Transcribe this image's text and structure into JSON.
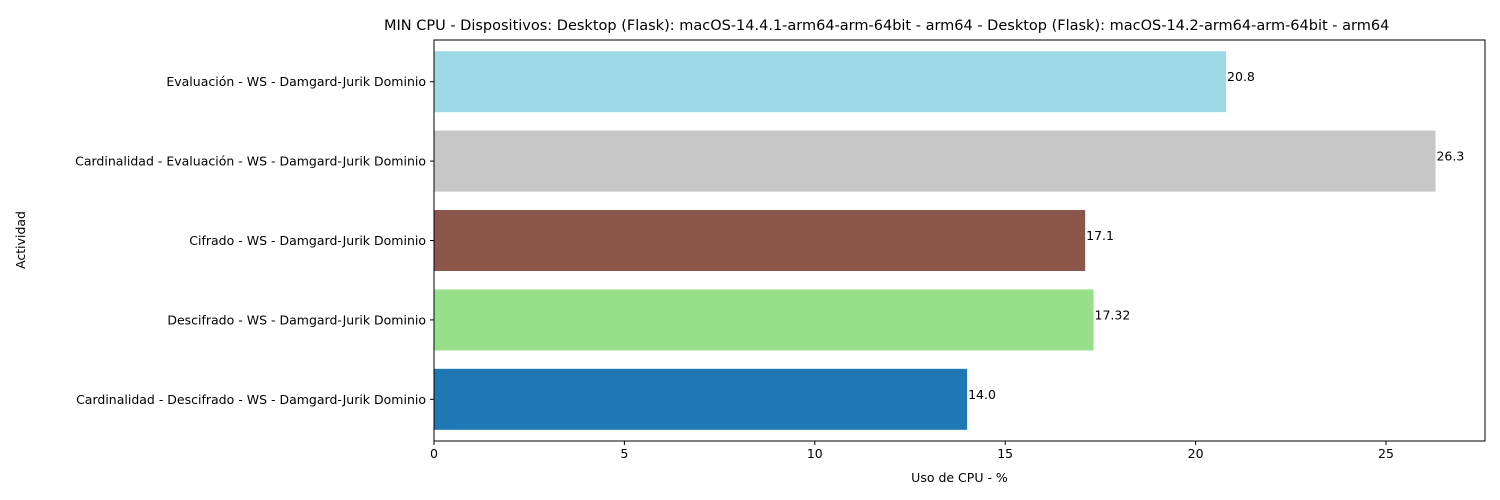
{
  "chart_data": {
    "type": "bar",
    "orientation": "horizontal",
    "title": "MIN CPU - Dispositivos: Desktop (Flask): macOS-14.4.1-arm64-arm-64bit - arm64 - Desktop (Flask): macOS-14.2-arm64-arm-64bit - arm64",
    "xlabel": "Uso de CPU - %",
    "ylabel": "Actividad",
    "categories": [
      "Evaluación - WS - Damgard-Jurik Dominio",
      "Cardinalidad - Evaluación - WS - Damgard-Jurik Dominio",
      "Cifrado - WS - Damgard-Jurik Dominio",
      "Descifrado - WS - Damgard-Jurik Dominio",
      "Cardinalidad - Descifrado - WS - Damgard-Jurik Dominio"
    ],
    "values": [
      20.8,
      26.3,
      17.1,
      17.32,
      14.0
    ],
    "value_labels": [
      "20.8",
      "26.3",
      "17.1",
      "17.32",
      "14.0"
    ],
    "colors": [
      "#9edae5",
      "#c7c7c7",
      "#8c564b",
      "#98df8a",
      "#1f77b4"
    ],
    "xlim": [
      0,
      27.6
    ],
    "xticks": [
      0,
      5,
      10,
      15,
      20,
      25
    ],
    "xtick_labels": [
      "0",
      "5",
      "10",
      "15",
      "20",
      "25"
    ],
    "grid": false,
    "legend": "none"
  }
}
